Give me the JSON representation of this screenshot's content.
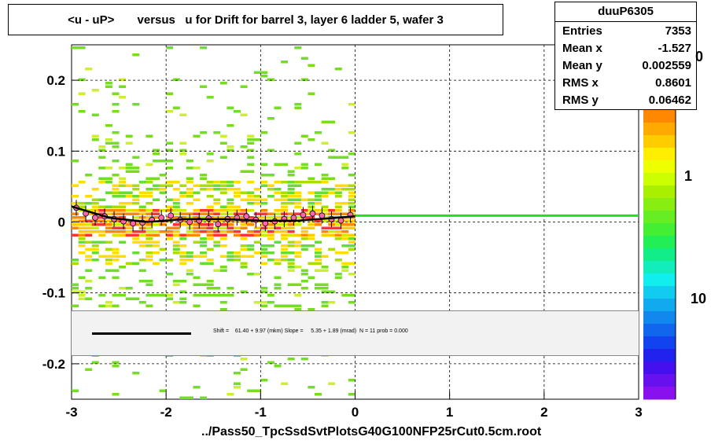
{
  "title": "<u - uP>       versus   u for Drift for barrel 3, layer 6 ladder 5, wafer 3",
  "xlabel": "../Pass50_TpcSsdSvtPlotsG40G100NFP25rCut0.5cm.root",
  "stats": {
    "name": "duuP6305",
    "rows": [
      {
        "key": "Entries",
        "value": "7353"
      },
      {
        "key": "Mean x",
        "value": "-1.527"
      },
      {
        "key": "Mean y",
        "value": "0.002559"
      },
      {
        "key": "RMS x",
        "value": "0.8601"
      },
      {
        "key": "RMS y",
        "value": "0.06462"
      }
    ]
  },
  "fit_text": "Shift =    61.40 + 9.97 (mkm) Slope =     5.35 + 1.89 (mrad)  N = 11 prob = 0.000",
  "palette_labels": [
    "0",
    "1",
    "10"
  ],
  "colors": {
    "fit_line": "#000000",
    "flat_line": "#22dd22",
    "points": "#ff66aa",
    "grid": "#000000"
  },
  "chart_data": {
    "type": "heatmap",
    "x_ticks": [
      "-3",
      "-2",
      "-1",
      "0",
      "1",
      "2",
      "3"
    ],
    "y_ticks": [
      "-0.2",
      "-0.1",
      "0",
      "0.1",
      "0.2"
    ],
    "xlim": [
      -3,
      3
    ],
    "ylim": [
      -0.25,
      0.25
    ],
    "grid": true,
    "profile_x": [
      -2.95,
      -2.85,
      -2.75,
      -2.65,
      -2.55,
      -2.45,
      -2.35,
      -2.25,
      -2.15,
      -2.05,
      -1.95,
      -1.85,
      -1.75,
      -1.65,
      -1.55,
      -1.45,
      -1.35,
      -1.25,
      -1.15,
      -1.05,
      -0.95,
      -0.85,
      -0.75,
      -0.65,
      -0.55,
      -0.45,
      -0.35,
      -0.25,
      -0.15,
      -0.05
    ],
    "profile_y": [
      0.02,
      0.012,
      0.006,
      0.008,
      0.004,
      0.001,
      -0.002,
      -0.001,
      0.003,
      0.006,
      0.009,
      0.003,
      0.0,
      0.002,
      0.005,
      -0.003,
      0.004,
      0.006,
      0.008,
      0.003,
      -0.002,
      0.001,
      0.004,
      0.006,
      0.01,
      0.012,
      0.009,
      0.004,
      0.002,
      0.01
    ],
    "fit_curve_x": [
      -3,
      -2.6,
      -2.2,
      -1.8,
      -1.4,
      -1.0,
      -0.6,
      -0.2,
      0.0
    ],
    "fit_curve_y": [
      0.022,
      0.006,
      0.0,
      0.004,
      0.004,
      0.002,
      0.002,
      0.006,
      0.008
    ],
    "flat_line": {
      "x": [
        0,
        3
      ],
      "y": 0.009
    }
  }
}
